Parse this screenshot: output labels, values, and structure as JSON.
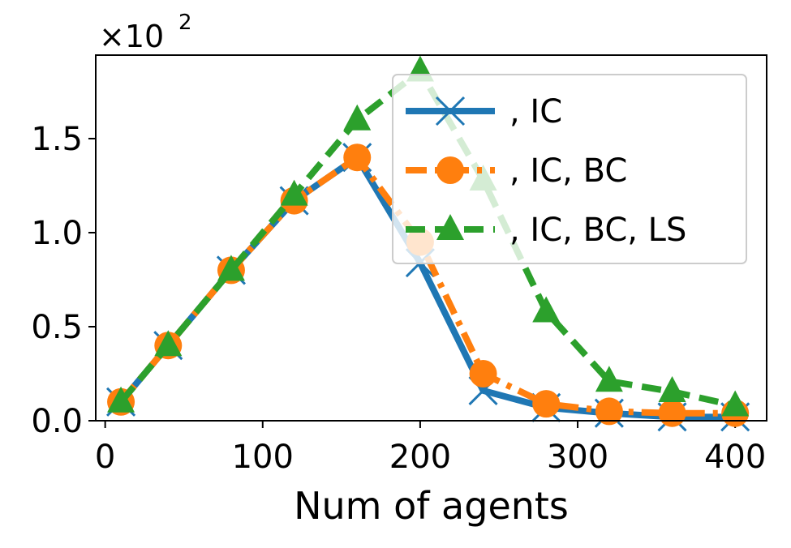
{
  "chart_data": {
    "type": "line",
    "xlabel": "Num of agents",
    "offset_text": {
      "base": "×10",
      "exponent": "2"
    },
    "x": [
      10,
      40,
      80,
      120,
      160,
      200,
      240,
      280,
      320,
      360,
      400
    ],
    "series": [
      {
        "name": ", IC",
        "color": "#1f77b4",
        "marker": "x",
        "linestyle": "solid",
        "values": [
          0.1,
          0.4,
          0.8,
          1.17,
          1.4,
          0.84,
          0.16,
          0.07,
          0.04,
          0.02,
          0.02
        ]
      },
      {
        "name": ", IC, BC",
        "color": "#ff7f0e",
        "marker": "o",
        "linestyle": "dashdot",
        "values": [
          0.1,
          0.4,
          0.8,
          1.17,
          1.4,
          0.95,
          0.25,
          0.09,
          0.05,
          0.04,
          0.04
        ]
      },
      {
        "name": ", IC, BC, LS",
        "color": "#2ca02c",
        "marker": "^",
        "linestyle": "dashed",
        "values": [
          0.1,
          0.4,
          0.8,
          1.2,
          1.6,
          1.86,
          1.28,
          0.58,
          0.21,
          0.155,
          0.08
        ]
      }
    ],
    "xlim": [
      -6,
      420
    ],
    "xticks": [
      0,
      100,
      200,
      300,
      400
    ],
    "ylim": [
      0,
      1.944
    ],
    "yticks": [
      {
        "value": 0,
        "label": "0.0"
      },
      0.5,
      {
        "value": 1,
        "label": "1.0"
      },
      1.5
    ],
    "legend": "upper right",
    "grid": false
  }
}
